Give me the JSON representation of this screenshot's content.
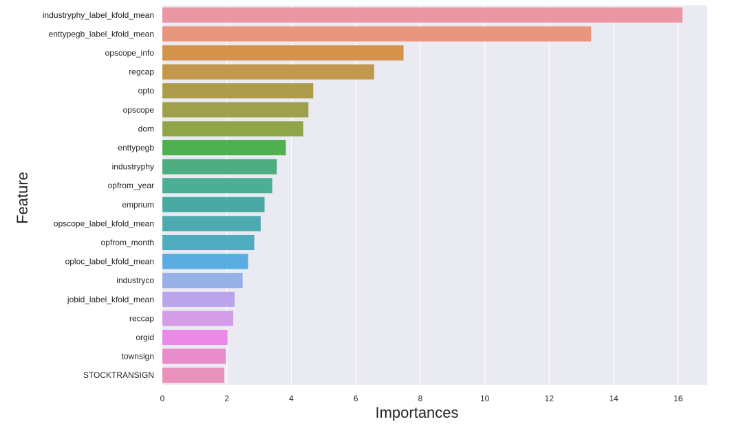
{
  "chart_data": {
    "type": "bar",
    "orientation": "horizontal",
    "title": "",
    "xlabel": "Importances",
    "ylabel": "Feature",
    "xlim": [
      0,
      16.9
    ],
    "xticks": [
      0,
      2,
      4,
      6,
      8,
      10,
      12,
      14,
      16
    ],
    "grid": true,
    "categories": [
      "industryphy_label_kfold_mean",
      "enttypegb_label_kfold_mean",
      "opscope_info",
      "regcap",
      "opto",
      "opscope",
      "dom",
      "enttypegb",
      "industryphy",
      "opfrom_year",
      "empnum",
      "opscope_label_kfold_mean",
      "opfrom_month",
      "oploc_label_kfold_mean",
      "industryco",
      "jobid_label_kfold_mean",
      "reccap",
      "orgid",
      "townsign",
      "STOCKTRANSIGN"
    ],
    "values": [
      16.13,
      13.3,
      7.48,
      6.57,
      4.68,
      4.53,
      4.37,
      3.83,
      3.55,
      3.41,
      3.17,
      3.05,
      2.85,
      2.66,
      2.49,
      2.24,
      2.2,
      2.02,
      1.97,
      1.92
    ],
    "colors": [
      "#ea96a3",
      "#e9967f",
      "#d4924a",
      "#c1984c",
      "#ad9c4b",
      "#9fa04b",
      "#8fa547",
      "#4eb04f",
      "#4ead80",
      "#4cae94",
      "#4ba9a3",
      "#4daab1",
      "#4fabbd",
      "#59ade0",
      "#98b0e8",
      "#baa5ec",
      "#d49de8",
      "#ea8ae6",
      "#e98ccc",
      "#e892bb"
    ],
    "plot_background": "#eaeaf2",
    "grid_color": "#ffffff"
  }
}
